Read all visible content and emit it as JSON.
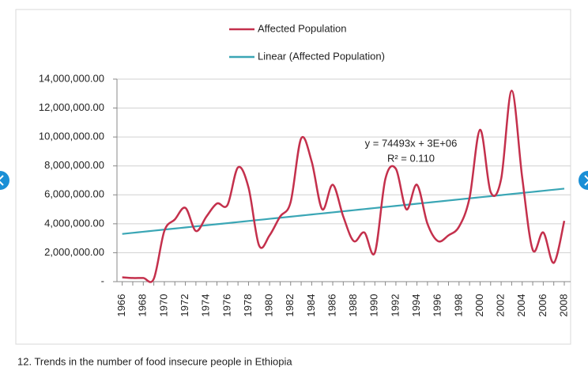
{
  "chart_data": {
    "type": "line",
    "x": [
      1966,
      1967,
      1968,
      1969,
      1970,
      1971,
      1972,
      1973,
      1974,
      1975,
      1976,
      1977,
      1978,
      1979,
      1980,
      1981,
      1982,
      1983,
      1984,
      1985,
      1986,
      1987,
      1988,
      1989,
      1990,
      1991,
      1992,
      1993,
      1994,
      1995,
      1996,
      1997,
      1998,
      1999,
      2000,
      2001,
      2002,
      2003,
      2004,
      2005,
      2006,
      2007,
      2008
    ],
    "series": [
      {
        "name": "Affected Population",
        "color": "#c4304c",
        "values": [
          300000,
          250000,
          250000,
          200000,
          3500000,
          4300000,
          5100000,
          3500000,
          4500000,
          5400000,
          5300000,
          7900000,
          6500000,
          2500000,
          3200000,
          4500000,
          5500000,
          9900000,
          8300000,
          5000000,
          6700000,
          4500000,
          2800000,
          3400000,
          2000000,
          7100000,
          7800000,
          5000000,
          6700000,
          4000000,
          2800000,
          3200000,
          3800000,
          5800000,
          10500000,
          6200000,
          7100000,
          13200000,
          7200000,
          2200000,
          3400000,
          1300000,
          4200000
        ]
      },
      {
        "name": "Linear (Affected Population)",
        "color": "#3aa6b5",
        "values": [
          3300000,
          3374000,
          3449000,
          3523000,
          3598000,
          3672000,
          3747000,
          3821000,
          3896000,
          3970000,
          4045000,
          4119000,
          4194000,
          4268000,
          4343000,
          4417000,
          4492000,
          4566000,
          4641000,
          4715000,
          4790000,
          4864000,
          4939000,
          5013000,
          5088000,
          5162000,
          5237000,
          5311000,
          5386000,
          5460000,
          5535000,
          5609000,
          5684000,
          5758000,
          5833000,
          5907000,
          5982000,
          6056000,
          6131000,
          6205000,
          6280000,
          6354000,
          6429000
        ]
      }
    ],
    "annotations": [
      "y = 74493x + 3E+06",
      "R² = 0.110"
    ],
    "xlim": [
      1965.5,
      2008.6
    ],
    "xticks": [
      1966,
      1968,
      1970,
      1972,
      1974,
      1976,
      1978,
      1980,
      1982,
      1984,
      1986,
      1988,
      1990,
      1992,
      1994,
      1996,
      1998,
      2000,
      2002,
      2004,
      2006,
      2008
    ],
    "ylim": [
      0,
      14000000
    ],
    "yticks": [
      {
        "value": 0,
        "label": "-"
      },
      {
        "value": 2000000,
        "label": "2,000,000.00"
      },
      {
        "value": 4000000,
        "label": "4,000,000.00"
      },
      {
        "value": 6000000,
        "label": "6,000,000.00"
      },
      {
        "value": 8000000,
        "label": "8,000,000.00"
      },
      {
        "value": 10000000,
        "label": "10,000,000.00"
      },
      {
        "value": 12000000,
        "label": "12,000,000.00"
      },
      {
        "value": 14000000,
        "label": "14,000,000.00"
      }
    ],
    "grid": true,
    "legend": "top"
  },
  "caption": "12. Trends in the number of food insecure people in Ethiopia"
}
